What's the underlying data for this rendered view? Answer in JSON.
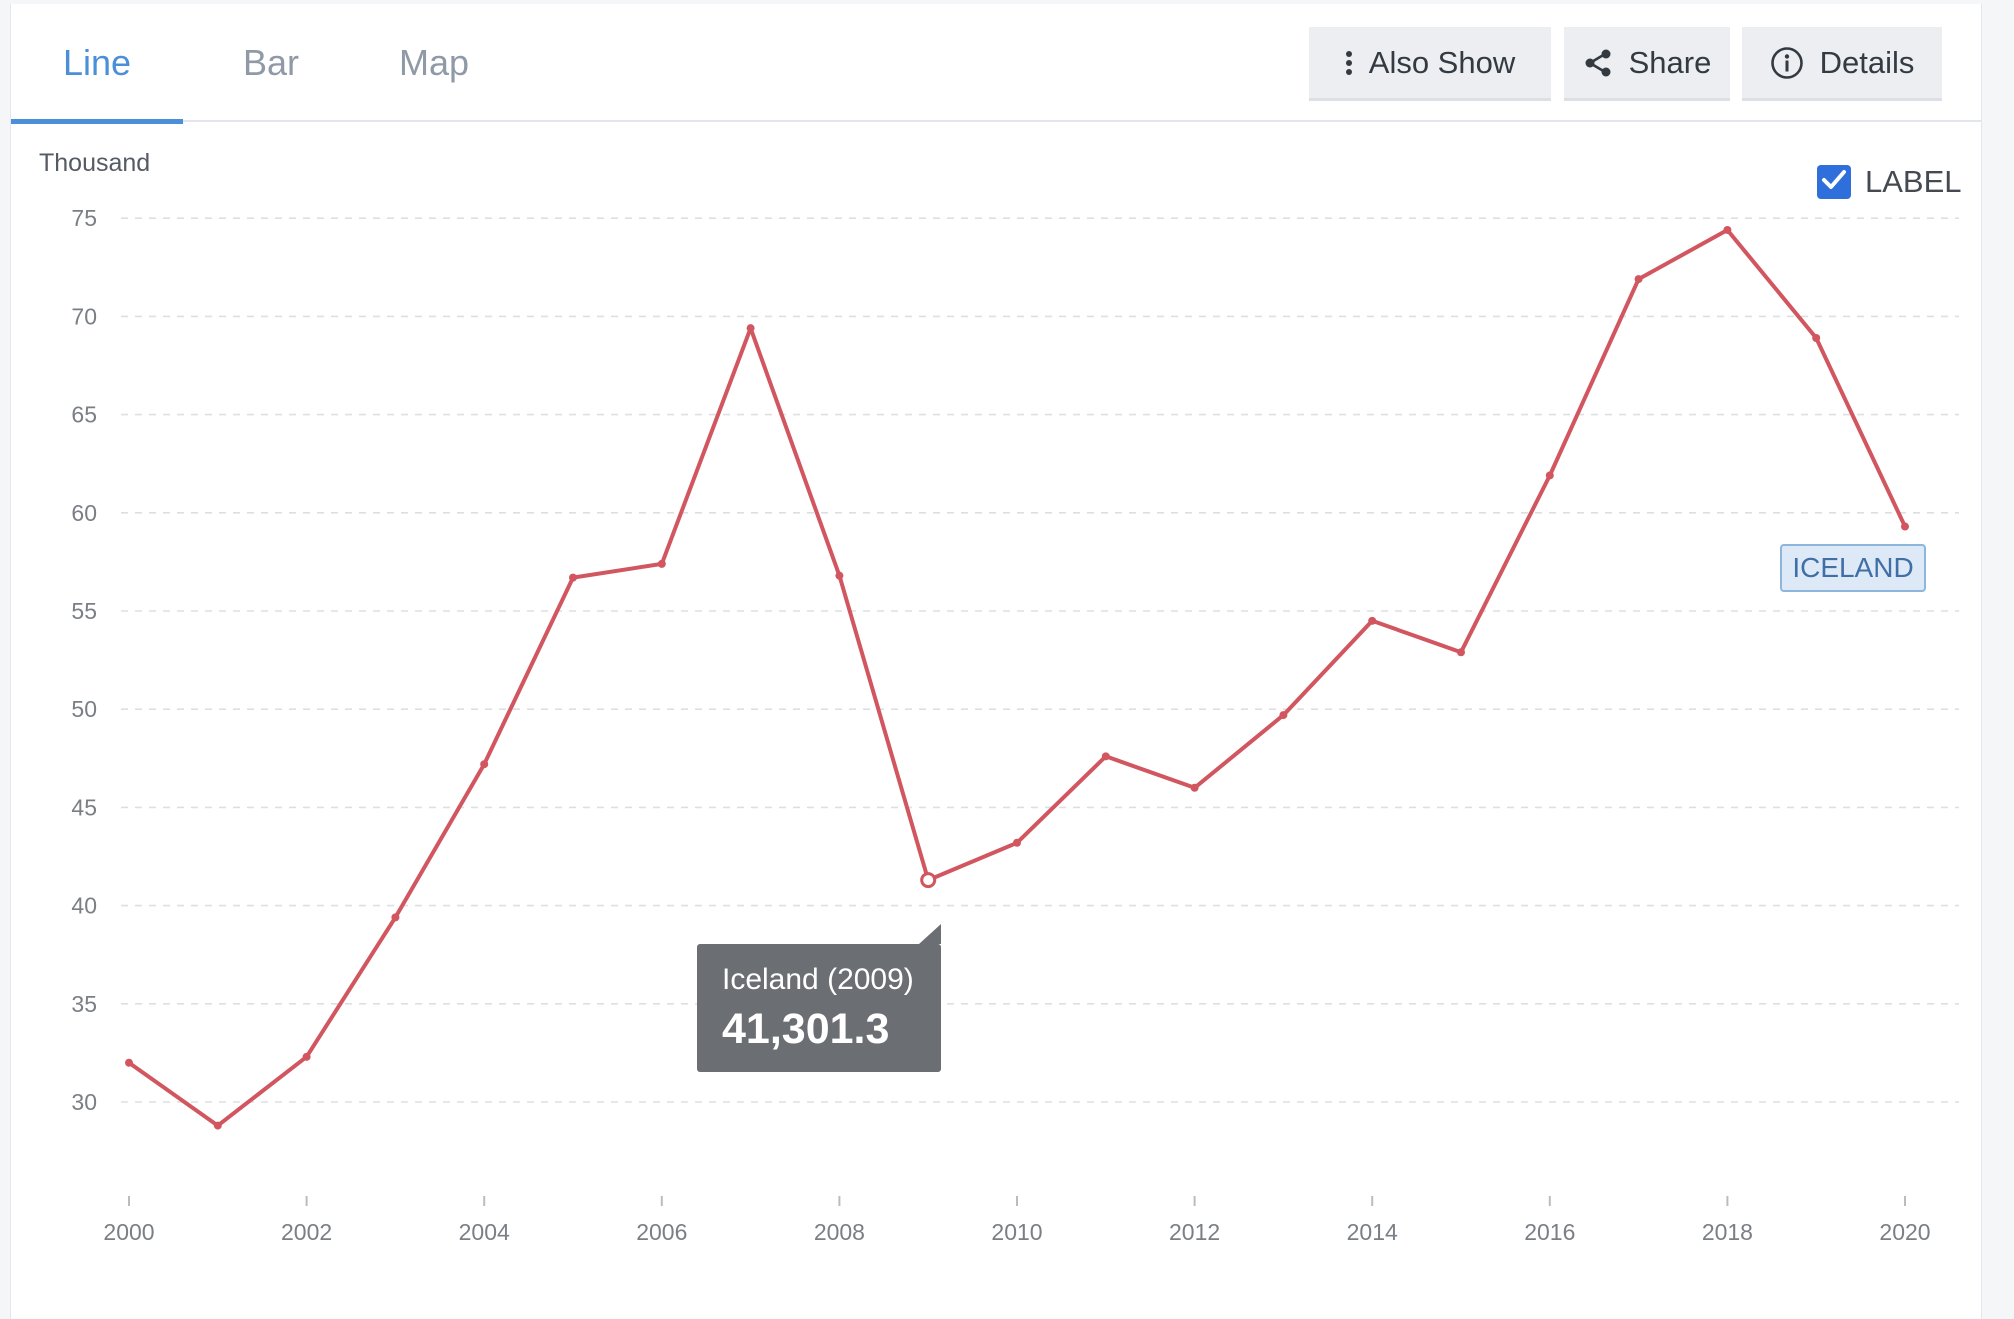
{
  "tabs": [
    {
      "label": "Line",
      "active": true
    },
    {
      "label": "Bar",
      "active": false
    },
    {
      "label": "Map",
      "active": false
    }
  ],
  "toolbar": {
    "also_show_label": "Also Show",
    "share_label": "Share",
    "details_label": "Details"
  },
  "label_toggle": {
    "text": "LABEL",
    "checked": true
  },
  "end_label": "ICELAND",
  "tooltip": {
    "title": "Iceland (2009)",
    "value": "41,301.3"
  },
  "colors": {
    "line": "#d1565f",
    "accent": "#4a8fd8",
    "checkbox": "#2f6fdb"
  },
  "chart_data": {
    "type": "line",
    "ylabel": "Thousand",
    "ylim": [
      25,
      75
    ],
    "yticks": [
      30,
      35,
      40,
      45,
      50,
      55,
      60,
      65,
      70,
      75
    ],
    "xlim": [
      2000,
      2020
    ],
    "xticks": [
      2000,
      2002,
      2004,
      2006,
      2008,
      2010,
      2012,
      2014,
      2016,
      2018,
      2020
    ],
    "grid": true,
    "highlighted_point": 2009,
    "series": [
      {
        "name": "ICELAND",
        "x": [
          2000,
          2001,
          2002,
          2003,
          2004,
          2005,
          2006,
          2007,
          2008,
          2009,
          2010,
          2011,
          2012,
          2013,
          2014,
          2015,
          2016,
          2017,
          2018,
          2019,
          2020
        ],
        "values": [
          32.0,
          28.8,
          32.3,
          39.4,
          47.2,
          56.7,
          57.4,
          69.4,
          56.8,
          41.3,
          43.2,
          47.6,
          46.0,
          49.7,
          54.5,
          52.9,
          61.9,
          71.9,
          74.4,
          68.9,
          59.3
        ]
      }
    ]
  }
}
